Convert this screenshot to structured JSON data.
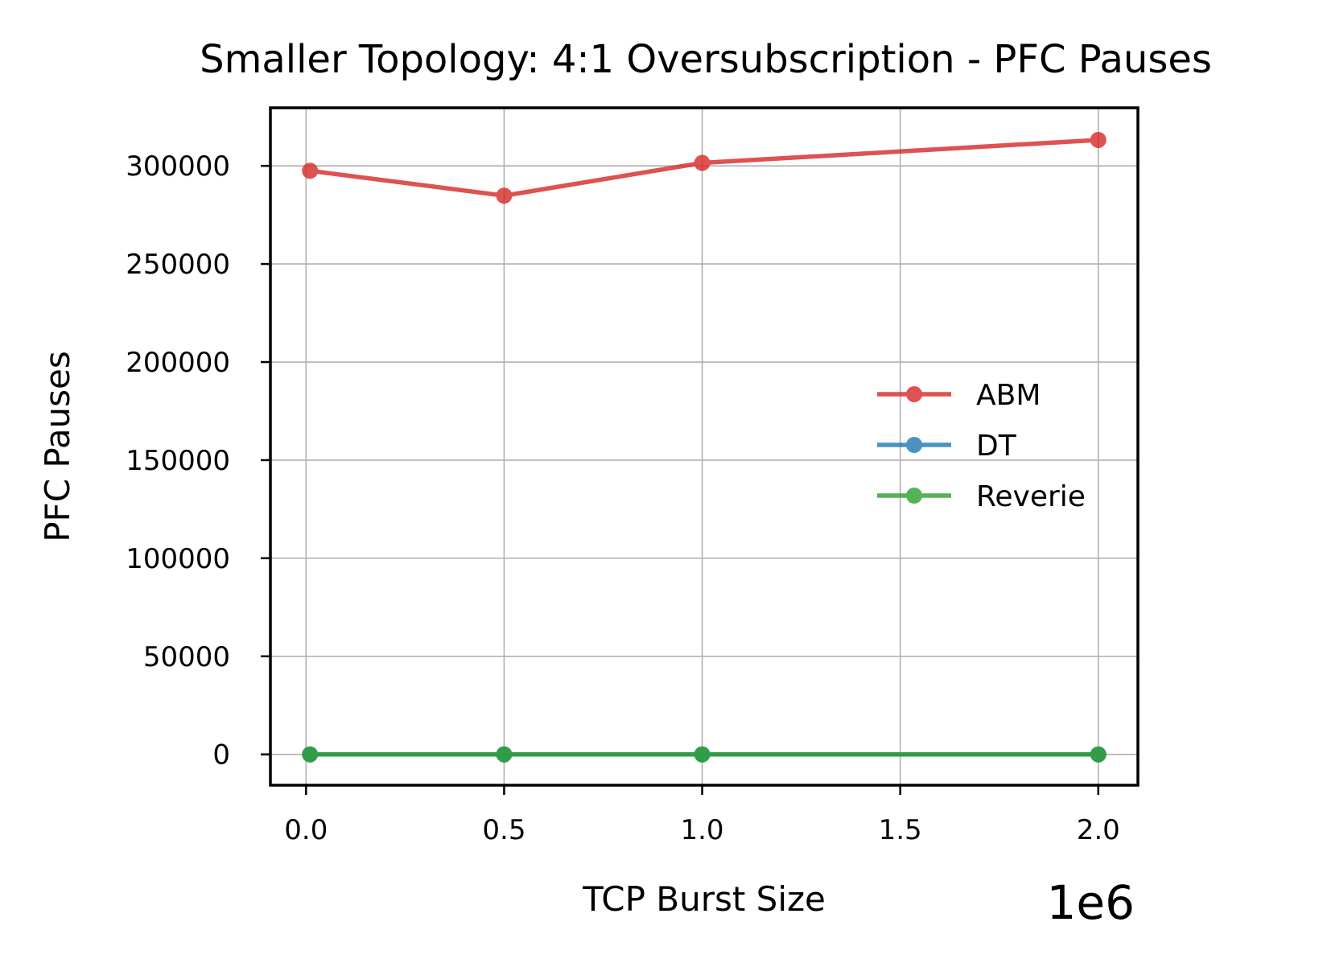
{
  "chart_data": {
    "type": "line",
    "title": "Smaller Topology: 4:1 Oversubscription - PFC Pauses",
    "xlabel": "TCP Burst Size",
    "ylabel": "PFC Pauses",
    "x_offset_label": "1e6",
    "x": [
      10000,
      500000,
      1000000,
      2000000
    ],
    "xlim": [
      -90000,
      2100000
    ],
    "ylim": [
      -15700,
      329600
    ],
    "x_ticks": [
      0,
      500000,
      1000000,
      1500000,
      2000000
    ],
    "x_tick_labels": [
      "0.0",
      "0.5",
      "1.0",
      "1.5",
      "2.0"
    ],
    "y_ticks": [
      0,
      50000,
      100000,
      150000,
      200000,
      250000,
      300000
    ],
    "y_tick_labels": [
      "0",
      "50000",
      "100000",
      "150000",
      "200000",
      "250000",
      "300000"
    ],
    "grid": true,
    "legend_position": "center-right",
    "series": [
      {
        "name": "ABM",
        "color": "#d62728",
        "values": [
          297500,
          284800,
          301500,
          313200
        ]
      },
      {
        "name": "DT",
        "color": "#1f77b4",
        "values": [
          0,
          0,
          0,
          0
        ]
      },
      {
        "name": "Reverie",
        "color": "#2ca02c",
        "values": [
          0,
          0,
          0,
          0
        ]
      }
    ]
  }
}
